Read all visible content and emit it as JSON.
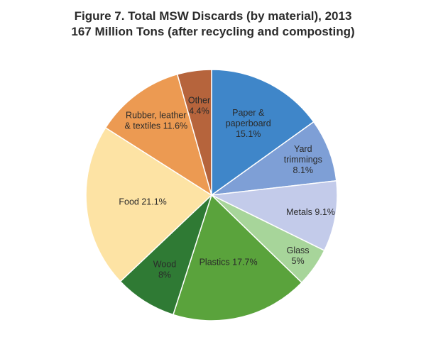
{
  "chart_data": {
    "type": "pie",
    "title": "Figure 7. Total MSW Discards (by material), 2013",
    "subtitle": "167 Million Tons (after recycling and composting)",
    "slices": [
      {
        "name": "Paper & paperboard",
        "label_lines": [
          "Paper &",
          "paperboard",
          "15.1%"
        ],
        "value": 15.1,
        "color": "#3f86c9"
      },
      {
        "name": "Yard trimmings",
        "label_lines": [
          "Yard",
          "trimmings",
          "8.1%"
        ],
        "value": 8.1,
        "color": "#7e9fd6"
      },
      {
        "name": "Metals",
        "label_lines": [
          "Metals 9.1%"
        ],
        "value": 9.1,
        "color": "#c3cbea"
      },
      {
        "name": "Glass",
        "label_lines": [
          "Glass",
          "5%"
        ],
        "value": 5.0,
        "color": "#a7d59a"
      },
      {
        "name": "Plastics",
        "label_lines": [
          "Plastics 17.7%"
        ],
        "value": 17.7,
        "color": "#5aa33c"
      },
      {
        "name": "Wood",
        "label_lines": [
          "Wood",
          "8%"
        ],
        "value": 8.0,
        "color": "#2f7a34"
      },
      {
        "name": "Food",
        "label_lines": [
          "Food 21.1%"
        ],
        "value": 21.1,
        "color": "#fde3a4"
      },
      {
        "name": "Rubber, leather & textiles",
        "label_lines": [
          "Rubber, leather",
          "& textiles 11.6%"
        ],
        "value": 11.6,
        "color": "#ec9a52"
      },
      {
        "name": "Other",
        "label_lines": [
          "Other",
          "4.4%"
        ],
        "value": 4.4,
        "color": "#b6643c"
      }
    ],
    "start": "12 o'clock, clockwise"
  }
}
